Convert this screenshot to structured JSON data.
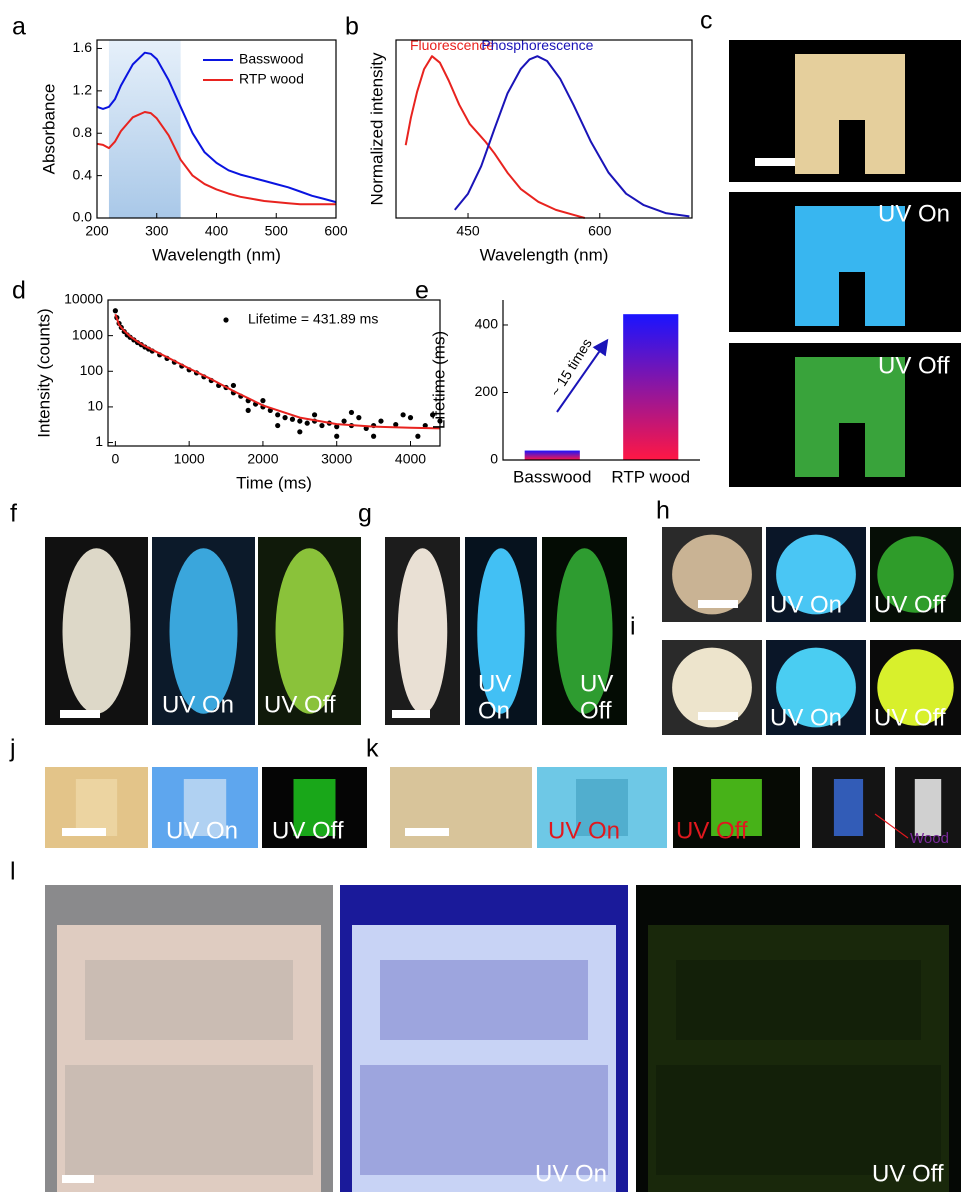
{
  "chart_data": [
    {
      "type": "line",
      "panel": "a",
      "xlabel": "Wavelength (nm)",
      "ylabel": "Absorbance",
      "xlim": [
        200,
        600
      ],
      "xticks": [
        200,
        300,
        400,
        500,
        600
      ],
      "ylim": [
        0,
        1.68
      ],
      "yticks": [
        {
          "value": 0,
          "label": "0.0"
        },
        0.4,
        0.8,
        1.2,
        1.6
      ],
      "shaded_range": [
        220,
        340
      ],
      "shade_color": "#a9c8e8",
      "legend": "upper right",
      "x": [
        200,
        210,
        220,
        230,
        240,
        260,
        280,
        290,
        300,
        320,
        340,
        360,
        380,
        400,
        420,
        440,
        460,
        480,
        500,
        520,
        540,
        560,
        580,
        600
      ],
      "series": [
        {
          "name": "Basswood",
          "color": "#0a14e0",
          "values": [
            1.05,
            1.03,
            1.05,
            1.12,
            1.25,
            1.45,
            1.56,
            1.55,
            1.5,
            1.3,
            1.05,
            0.8,
            0.62,
            0.52,
            0.45,
            0.41,
            0.38,
            0.35,
            0.32,
            0.29,
            0.25,
            0.21,
            0.18,
            0.15
          ]
        },
        {
          "name": "RTP wood",
          "color": "#e8231f",
          "values": [
            0.7,
            0.69,
            0.66,
            0.72,
            0.82,
            0.95,
            1.0,
            0.99,
            0.94,
            0.78,
            0.55,
            0.4,
            0.32,
            0.27,
            0.23,
            0.2,
            0.18,
            0.16,
            0.15,
            0.14,
            0.13,
            0.13,
            0.13,
            0.13
          ]
        }
      ]
    },
    {
      "type": "line",
      "panel": "b",
      "xlabel": "Wavelength (nm)",
      "ylabel": "Normalized intensity",
      "xlim": [
        368,
        705
      ],
      "xticks": [
        450,
        600
      ],
      "ylim": [
        0,
        1.1
      ],
      "yticks": [],
      "direct_labels": true,
      "series": [
        {
          "name": "Fluorescence",
          "color": "#e8231f",
          "x": [
            379,
            385,
            392,
            400,
            409,
            418,
            428,
            440,
            452,
            462,
            470,
            480,
            495,
            510,
            530,
            550,
            570,
            583
          ],
          "values": [
            0.45,
            0.62,
            0.78,
            0.92,
            1.0,
            0.96,
            0.85,
            0.7,
            0.58,
            0.52,
            0.47,
            0.4,
            0.28,
            0.18,
            0.1,
            0.05,
            0.02,
            0.0
          ]
        },
        {
          "name": "Phosphorescence",
          "color": "#1a14b8",
          "x": [
            435,
            450,
            465,
            480,
            495,
            510,
            520,
            529,
            540,
            555,
            570,
            590,
            610,
            630,
            650,
            675,
            702
          ],
          "values": [
            0.05,
            0.15,
            0.32,
            0.55,
            0.77,
            0.92,
            0.98,
            1.0,
            0.97,
            0.86,
            0.7,
            0.47,
            0.28,
            0.15,
            0.08,
            0.03,
            0.01
          ]
        }
      ]
    },
    {
      "type": "scatter",
      "panel": "d",
      "xlabel": "Time (ms)",
      "ylabel": "Intensity (counts)",
      "xlim": [
        -100,
        4400
      ],
      "xticks": [
        0,
        1000,
        2000,
        3000,
        4000
      ],
      "yscale": "log",
      "ylim": [
        0.8,
        10000
      ],
      "yticks": [
        1,
        10,
        100,
        1000,
        10000
      ],
      "legend": "upper right",
      "series": [
        {
          "name": "Lifetime = 431.89 ms",
          "color": "#000000",
          "mode": "markers",
          "x": [
            0,
            20,
            50,
            80,
            120,
            160,
            200,
            250,
            300,
            350,
            400,
            450,
            500,
            600,
            700,
            800,
            900,
            1000,
            1100,
            1200,
            1300,
            1400,
            1500,
            1600,
            1700,
            1800,
            1900,
            2000,
            2100,
            2200,
            2300,
            2400,
            2500,
            2600,
            2700,
            2800,
            2900,
            3000,
            3100,
            3200,
            3300,
            3400,
            3500,
            3600,
            3800,
            4000,
            4200,
            4400,
            1600,
            1800,
            2000,
            2200,
            2500,
            2700,
            3000,
            3200,
            3500,
            3900,
            4100,
            4300
          ],
          "values": [
            5000,
            3200,
            2200,
            1700,
            1300,
            1050,
            900,
            760,
            640,
            560,
            480,
            420,
            370,
            290,
            230,
            180,
            140,
            110,
            90,
            70,
            55,
            40,
            35,
            25,
            20,
            15,
            12,
            10,
            8,
            6,
            5,
            4.5,
            4,
            3.5,
            4,
            3,
            3.5,
            2.8,
            4,
            3,
            5,
            2.5,
            3,
            4,
            3.2,
            5,
            3,
            4,
            40,
            8,
            15,
            3,
            2,
            6,
            1.5,
            7,
            1.5,
            6,
            1.5,
            6
          ]
        },
        {
          "color": "#e8231f",
          "mode": "line",
          "x": [
            0,
            50,
            100,
            200,
            300,
            400,
            500,
            700,
            1000,
            1300,
            1600,
            2000,
            2500,
            3000,
            3500,
            4000,
            4400
          ],
          "values": [
            4000,
            2000,
            1500,
            950,
            680,
            510,
            400,
            250,
            120,
            60,
            28,
            11,
            5,
            3.3,
            2.8,
            2.6,
            2.5
          ]
        }
      ]
    },
    {
      "type": "bar",
      "panel": "e",
      "ylabel": "Lifetime (ms)",
      "categories": [
        "Basswood",
        "RTP wood"
      ],
      "values": [
        28,
        432
      ],
      "gradient": [
        "#1a14ff",
        "#ff1744"
      ],
      "ylim": [
        0,
        474
      ],
      "yticks": [
        0,
        200,
        400
      ],
      "annotation": "~ 15 times"
    }
  ],
  "photos": {
    "c": {
      "label": "c",
      "captions": [
        "UV On",
        "UV Off"
      ]
    },
    "f": {
      "label": "f",
      "captions": [
        "UV On",
        "UV Off"
      ]
    },
    "g": {
      "label": "g",
      "captions": [
        "UV",
        "On",
        "UV",
        "Off"
      ]
    },
    "h": {
      "label": "h",
      "captions": [
        "UV On",
        "UV Off"
      ]
    },
    "i": {
      "label": "i",
      "captions": [
        "UV On",
        "UV Off"
      ]
    },
    "j": {
      "label": "j",
      "captions": [
        "UV On",
        "UV Off"
      ]
    },
    "k": {
      "label": "k",
      "captions": [
        "UV On",
        "UV Off",
        "Wood"
      ]
    },
    "l": {
      "label": "l",
      "captions": [
        "UV On",
        "UV Off"
      ]
    }
  }
}
